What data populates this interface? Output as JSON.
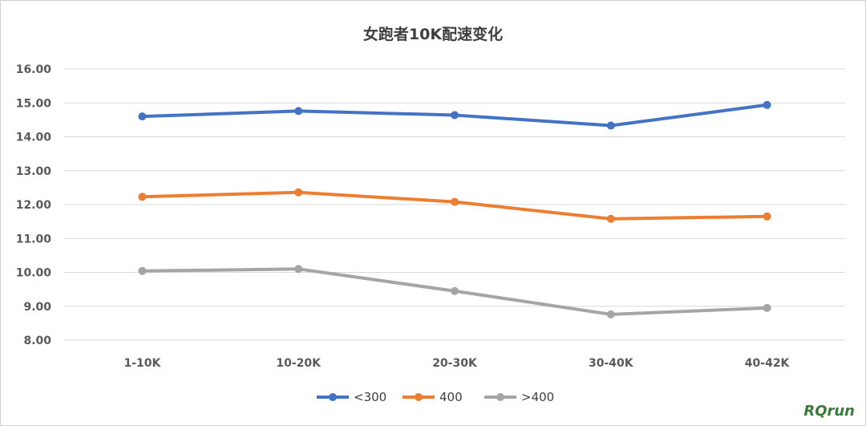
{
  "chart_data": {
    "type": "line",
    "title": "女跑者10K配速变化",
    "categories": [
      "1-10K",
      "10-20K",
      "20-30K",
      "30-40K",
      "40-42K"
    ],
    "series": [
      {
        "name": "<300",
        "color": "#4472C4",
        "values": [
          14.6,
          14.76,
          14.64,
          14.33,
          14.94
        ]
      },
      {
        "name": "400",
        "color": "#ED7D31",
        "values": [
          12.23,
          12.36,
          12.08,
          11.58,
          11.65
        ]
      },
      {
        "name": ">400",
        "color": "#A5A5A5",
        "values": [
          10.04,
          10.1,
          9.45,
          8.76,
          8.95
        ]
      }
    ],
    "yticks": [
      "8.00",
      "9.00",
      "10.00",
      "11.00",
      "12.00",
      "13.00",
      "14.00",
      "15.00",
      "16.00"
    ],
    "ylim": [
      8,
      16
    ],
    "xlabel": "",
    "ylabel": "",
    "grid": true,
    "legend": "bottom"
  },
  "watermark": "RQrun"
}
